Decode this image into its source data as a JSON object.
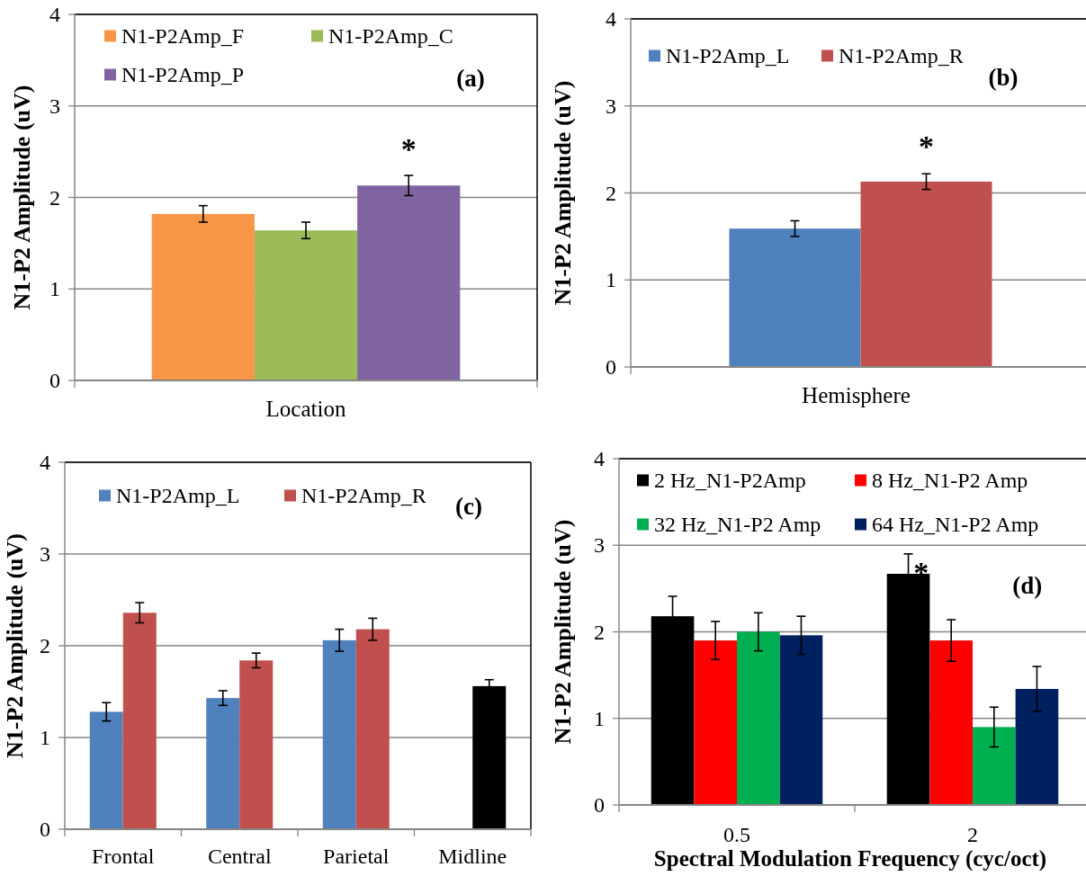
{
  "chart_data": [
    {
      "type": "bar",
      "categories": [
        null
      ],
      "xlabel": "Location",
      "ylabel": "N1-P2 Amplitude (uV)",
      "ylim": [
        0,
        4
      ],
      "yticks": [
        0,
        1,
        2,
        3,
        4
      ],
      "grid": "y",
      "legend": "top left",
      "series": [
        {
          "name": "N1-P2Amp_F",
          "color": "#f79646",
          "values": [
            1.82
          ],
          "errors": [
            0.09
          ]
        },
        {
          "name": "N1-P2Amp_C",
          "color": "#9bbb59",
          "values": [
            1.64
          ],
          "errors": [
            0.09
          ]
        },
        {
          "name": "N1-P2Amp_P",
          "color": "#8064a2",
          "values": [
            2.13
          ],
          "errors": [
            0.11
          ]
        }
      ],
      "annotations": [
        "(a)",
        "*"
      ]
    },
    {
      "type": "bar",
      "categories": [
        null
      ],
      "xlabel": "Hemisphere",
      "ylabel": "N1-P2 Amplitude (uV)",
      "ylim": [
        0,
        4
      ],
      "yticks": [
        0,
        1,
        2,
        3,
        4
      ],
      "grid": "y",
      "legend": "top left",
      "series": [
        {
          "name": "N1-P2Amp_L",
          "color": "#4f81bd",
          "values": [
            1.59
          ],
          "errors": [
            0.09
          ]
        },
        {
          "name": "N1-P2Amp_R",
          "color": "#c0504d",
          "values": [
            2.13
          ],
          "errors": [
            0.09
          ]
        }
      ],
      "annotations": [
        "(b)",
        "*"
      ]
    },
    {
      "type": "bar",
      "categories": [
        "Frontal",
        "Central",
        "Parietal",
        "Midline"
      ],
      "ylabel": "N1-P2 Amplitude (uV)",
      "ylim": [
        0,
        4
      ],
      "yticks": [
        0,
        1,
        2,
        3,
        4
      ],
      "grid": "y",
      "legend": "top left",
      "series": [
        {
          "name": "N1-P2Amp_L",
          "color": "#4f81bd",
          "values": [
            1.28,
            1.43,
            2.06,
            null
          ],
          "errors": [
            0.1,
            0.08,
            0.12,
            null
          ]
        },
        {
          "name": "N1-P2Amp_R",
          "color": "#c0504d",
          "colors": [
            "#c0504d",
            "#c0504d",
            "#c0504d",
            "#000000"
          ],
          "values": [
            2.36,
            1.84,
            2.18,
            1.56
          ],
          "errors": [
            0.11,
            0.08,
            0.12,
            0.07
          ]
        }
      ],
      "annotations": [
        "(c)"
      ]
    },
    {
      "type": "bar",
      "categories": [
        "0.5",
        "2"
      ],
      "xlabel": "Spectral Modulation Frequency (cyc/oct)",
      "ylabel": "N1-P2 Amplitude (uV)",
      "ylim": [
        0,
        4
      ],
      "yticks": [
        0,
        1,
        2,
        3,
        4
      ],
      "grid": "y",
      "legend": "top",
      "series": [
        {
          "name": "2 Hz_N1-P2Amp",
          "color": "#000000",
          "values": [
            2.18,
            2.67
          ],
          "errors": [
            0.23,
            0.23
          ]
        },
        {
          "name": "8 Hz_N1-P2 Amp",
          "color": "#ff0000",
          "values": [
            1.9,
            1.9
          ],
          "errors": [
            0.22,
            0.24
          ]
        },
        {
          "name": "32 Hz_N1-P2 Amp",
          "color": "#00b050",
          "values": [
            2.0,
            0.9
          ],
          "errors": [
            0.22,
            0.23
          ]
        },
        {
          "name": "64 Hz_N1-P2 Amp",
          "color": "#002060",
          "values": [
            1.96,
            1.34
          ],
          "errors": [
            0.22,
            0.26
          ]
        }
      ],
      "annotations": [
        "*",
        "(d)"
      ]
    }
  ]
}
